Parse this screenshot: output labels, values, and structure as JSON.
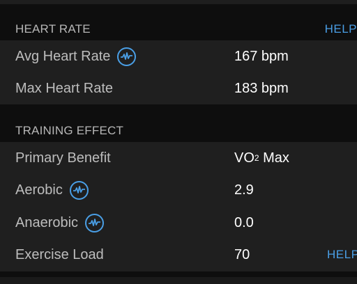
{
  "heart_rate": {
    "title": "HEART RATE",
    "help": "HELP",
    "avg_label": "Avg Heart Rate",
    "avg_value": "167 bpm",
    "max_label": "Max Heart Rate",
    "max_value": "183 bpm"
  },
  "training_effect": {
    "title": "TRAINING EFFECT",
    "primary_label": "Primary Benefit",
    "primary_value_main": "VO",
    "primary_value_sub": "2",
    "primary_value_tail": " Max",
    "aerobic_label": "Aerobic",
    "aerobic_value": "2.9",
    "anaerobic_label": "Anaerobic",
    "anaerobic_value": "0.0",
    "load_label": "Exercise Load",
    "load_value": "70",
    "load_help": "HELP"
  },
  "icons": {
    "heart_rate_info": "heart-rate-pulse-icon"
  },
  "colors": {
    "accent": "#4a9fe6",
    "panel": "#1f1f1f",
    "background": "#0e0e0e"
  }
}
